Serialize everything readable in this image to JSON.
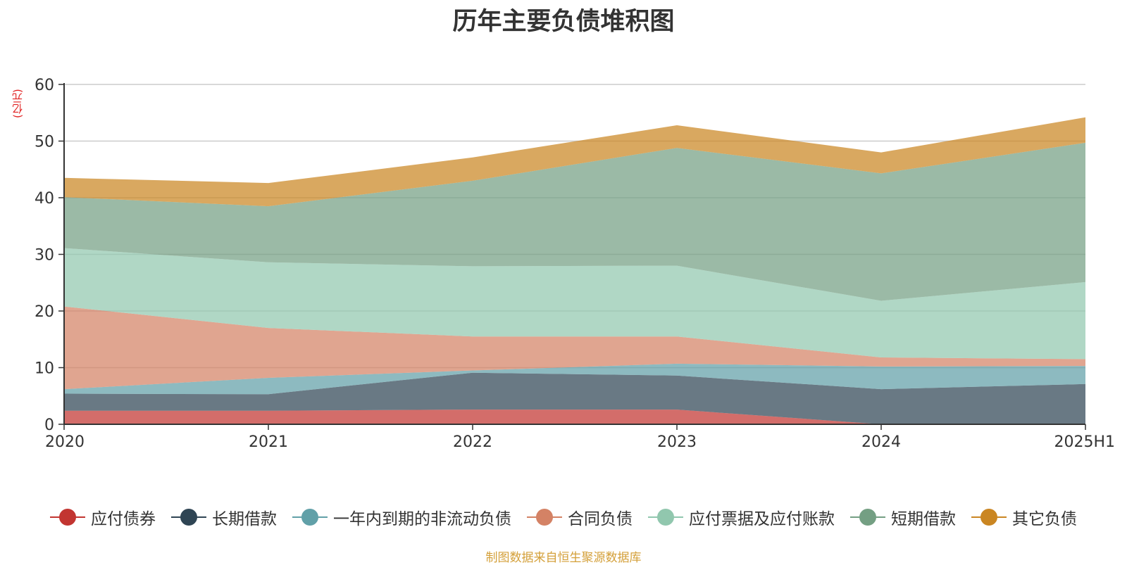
{
  "chart_data": {
    "type": "area",
    "stacked": true,
    "title": "历年主要负债堆积图",
    "unit_label": "(亿元)",
    "categories": [
      "2020",
      "2021",
      "2022",
      "2023",
      "2024",
      "2025H1"
    ],
    "ylim": [
      0,
      60
    ],
    "yticks": [
      "0",
      "10",
      "20",
      "30",
      "40",
      "50",
      "60"
    ],
    "grid": true,
    "legend_position": "bottom",
    "series": [
      {
        "name": "应付债券",
        "color": "#c23531",
        "values": [
          2.4,
          2.4,
          2.6,
          2.6,
          0.0,
          0.0
        ]
      },
      {
        "name": "长期借款",
        "color": "#2f4554",
        "values": [
          3.0,
          2.9,
          6.5,
          6.0,
          6.2,
          7.1
        ]
      },
      {
        "name": "一年内到期的非流动负债",
        "color": "#61a0a8",
        "values": [
          0.8,
          2.9,
          0.4,
          2.1,
          4.0,
          3.2
        ]
      },
      {
        "name": "合同负债",
        "color": "#d48265",
        "values": [
          14.6,
          8.8,
          6.0,
          4.8,
          1.6,
          1.2
        ]
      },
      {
        "name": "应付票据及应付账款",
        "color": "#91c7ae",
        "values": [
          10.3,
          11.6,
          12.4,
          12.5,
          10.0,
          13.6
        ]
      },
      {
        "name": "短期借款",
        "color": "#749f83",
        "values": [
          9.0,
          9.9,
          15.1,
          20.8,
          22.5,
          24.6
        ]
      },
      {
        "name": "其它负债",
        "color": "#ca8622",
        "values": [
          3.4,
          4.1,
          4.1,
          4.0,
          3.7,
          4.5
        ]
      }
    ]
  },
  "source_note": "制图数据来自恒生聚源数据库"
}
